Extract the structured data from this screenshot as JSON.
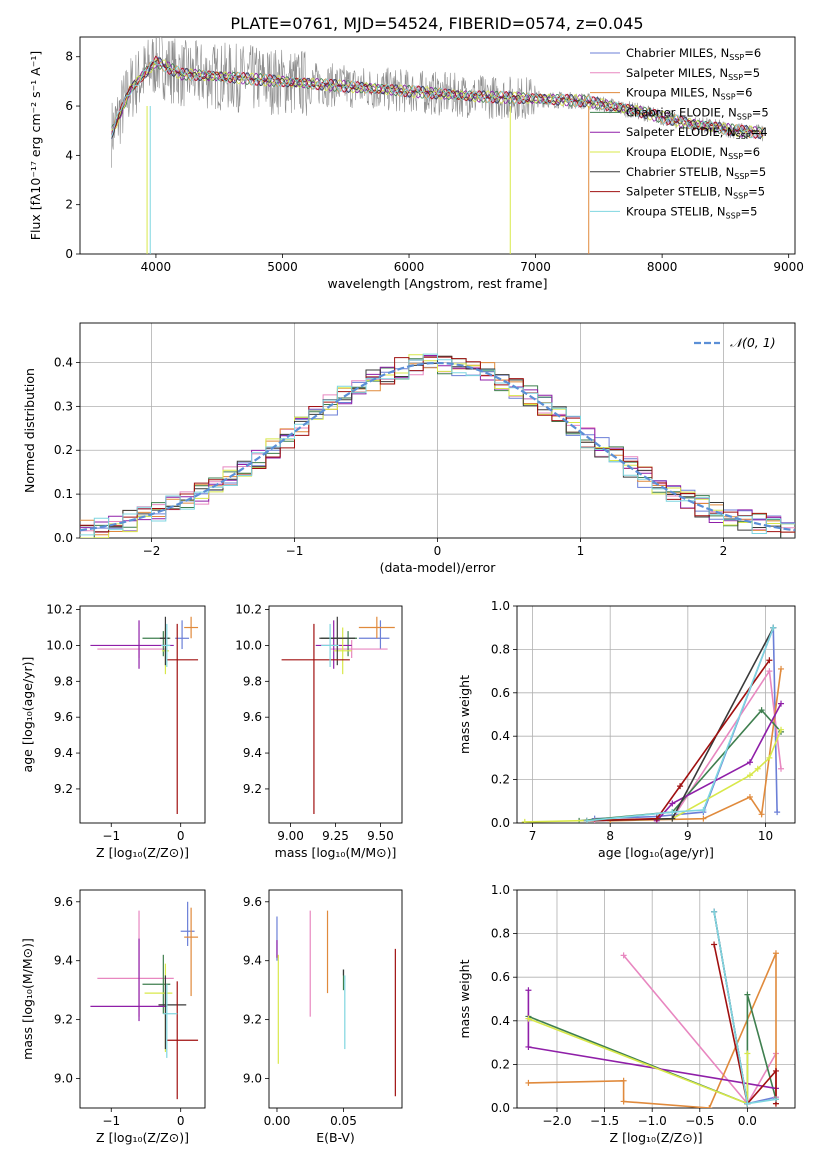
{
  "figure_title": "PLATE=0761, MJD=54524, FIBERID=0574, z=0.045",
  "colors": {
    "Chabrier MILES": "#6b7fd7",
    "Salpeter MILES": "#e887c0",
    "Kroupa MILES": "#e08a3c",
    "Chabrier ELODIE": "#3f7f4f",
    "Salpeter ELODIE": "#8f1fa8",
    "Kroupa ELODIE": "#d8e84a",
    "Chabrier STELIB": "#3a3a3a",
    "Salpeter STELIB": "#a01010",
    "Kroupa STELIB": "#7fd6e0",
    "observed": "#8c8c8c",
    "normal_curve": "#5b8fd6"
  },
  "chart_data": [
    {
      "id": "spectrum",
      "type": "line",
      "xlabel": "wavelength [Angstrom, rest frame]",
      "ylabel": "Flux [fλ10⁻¹⁷ erg cm⁻² s⁻¹ A⁻¹]",
      "xlim": [
        3400,
        9050
      ],
      "ylim": [
        0,
        8.8
      ],
      "xticks": [
        4000,
        5000,
        6000,
        7000,
        8000,
        9000
      ],
      "yticks": [
        0,
        2,
        4,
        6,
        8
      ],
      "x": [
        3650,
        3800,
        4000,
        4200,
        4500,
        5000,
        5500,
        6000,
        6500,
        7000,
        7400,
        7800,
        8200,
        8600,
        8800
      ],
      "model_y": [
        4.9,
        6.7,
        7.8,
        7.3,
        7.2,
        7.0,
        6.8,
        6.6,
        6.4,
        6.3,
        6.2,
        5.8,
        5.3,
        5.0,
        4.9
      ],
      "legend": [
        {
          "label": "Chabrier MILES, N",
          "sub": "SSP",
          "value": "=6"
        },
        {
          "label": "Salpeter MILES, N",
          "sub": "SSP",
          "value": "=5"
        },
        {
          "label": "Kroupa MILES, N",
          "sub": "SSP",
          "value": "=6"
        },
        {
          "label": "Chabrier ELODIE, N",
          "sub": "SSP",
          "value": "=5"
        },
        {
          "label": "Salpeter ELODIE, N",
          "sub": "SSP",
          "value": "=4"
        },
        {
          "label": "Kroupa ELODIE, N",
          "sub": "SSP",
          "value": "=6"
        },
        {
          "label": "Chabrier STELIB, N",
          "sub": "SSP",
          "value": "=5"
        },
        {
          "label": "Salpeter STELIB, N",
          "sub": "SSP",
          "value": "=5"
        },
        {
          "label": "Kroupa STELIB, N",
          "sub": "SSP",
          "value": "=5"
        }
      ]
    },
    {
      "id": "residuals",
      "type": "histogram",
      "xlabel": "(data-model)/error",
      "ylabel": "Normed distribution",
      "xlim": [
        -2.5,
        2.5
      ],
      "ylim": [
        0,
        0.49
      ],
      "xticks": [
        -2,
        -1,
        0,
        1,
        2
      ],
      "yticks": [
        0.0,
        0.1,
        0.2,
        0.3,
        0.4
      ],
      "grid": true,
      "legend": "𝒩(0, 1)",
      "legend_position": "top-right"
    },
    {
      "id": "z-age",
      "type": "scatter",
      "xlabel": "Z [log₁₀(Z/Z⊙)]",
      "ylabel": "age  [log₁₀(age/yr)]",
      "xlim": [
        -1.45,
        0.35
      ],
      "ylim": [
        9.01,
        10.22
      ],
      "xticks": [
        -1,
        0
      ],
      "yticks": [
        9.2,
        9.4,
        9.6,
        9.8,
        10.0,
        10.2
      ],
      "points": [
        {
          "s": "Chabrier MILES",
          "x": 0.02,
          "y": 10.04,
          "xe": [
            0.1,
            0.1
          ],
          "ye": [
            0.06,
            0.1
          ]
        },
        {
          "s": "Salpeter MILES",
          "x": -0.6,
          "y": 9.98,
          "xe": [
            0.6,
            0.4
          ],
          "ye": [
            0.05,
            0.05
          ]
        },
        {
          "s": "Kroupa MILES",
          "x": 0.15,
          "y": 10.1,
          "xe": [
            0.1,
            0.1
          ],
          "ye": [
            0.06,
            0.06
          ]
        },
        {
          "s": "Chabrier ELODIE",
          "x": -0.25,
          "y": 10.04,
          "xe": [
            0.3,
            0.1
          ],
          "ye": [
            0.1,
            0.04
          ]
        },
        {
          "s": "Salpeter ELODIE",
          "x": -0.6,
          "y": 10.0,
          "xe": [
            0.7,
            0.5
          ],
          "ye": [
            0.13,
            0.14
          ]
        },
        {
          "s": "Kroupa ELODIE",
          "x": -0.22,
          "y": 9.97,
          "xe": [
            0.05,
            0.05
          ],
          "ye": [
            0.13,
            0.13
          ]
        },
        {
          "s": "Chabrier STELIB",
          "x": -0.22,
          "y": 10.04,
          "xe": [
            0.08,
            0.05
          ],
          "ye": [
            0.15,
            0.12
          ]
        },
        {
          "s": "Salpeter STELIB",
          "x": -0.05,
          "y": 9.92,
          "xe": [
            0.15,
            0.3
          ],
          "ye": [
            0.86,
            0.2
          ]
        },
        {
          "s": "Kroupa STELIB",
          "x": -0.2,
          "y": 10.0,
          "xe": [
            0.08,
            0.05
          ],
          "ye": [
            0.12,
            0.12
          ]
        }
      ]
    },
    {
      "id": "mass-age",
      "type": "scatter",
      "xlabel": "mass [log₁₀(M/M⊙)]",
      "ylabel": "",
      "xlim": [
        8.88,
        9.62
      ],
      "ylim": [
        9.01,
        10.22
      ],
      "xticks": [
        9.0,
        9.25,
        9.5
      ],
      "xtick_labels": [
        "9.00",
        "9.25",
        "9.50"
      ],
      "yticks": [
        9.2,
        9.4,
        9.6,
        9.8,
        10.0,
        10.2
      ],
      "points": [
        {
          "s": "Chabrier MILES",
          "x": 9.5,
          "y": 10.04,
          "xe": [
            0.12,
            0.05
          ],
          "ye": [
            0.06,
            0.1
          ]
        },
        {
          "s": "Salpeter MILES",
          "x": 9.34,
          "y": 9.98,
          "xe": [
            0.12,
            0.2
          ],
          "ye": [
            0.05,
            0.05
          ]
        },
        {
          "s": "Kroupa MILES",
          "x": 9.48,
          "y": 10.1,
          "xe": [
            0.1,
            0.1
          ],
          "ye": [
            0.06,
            0.06
          ]
        },
        {
          "s": "Chabrier ELODIE",
          "x": 9.32,
          "y": 10.04,
          "xe": [
            0.15,
            0.05
          ],
          "ye": [
            0.1,
            0.04
          ]
        },
        {
          "s": "Salpeter ELODIE",
          "x": 9.24,
          "y": 10.0,
          "xe": [
            0.1,
            0.1
          ],
          "ye": [
            0.13,
            0.14
          ]
        },
        {
          "s": "Kroupa ELODIE",
          "x": 9.29,
          "y": 9.97,
          "xe": [
            0.05,
            0.05
          ],
          "ye": [
            0.13,
            0.13
          ]
        },
        {
          "s": "Chabrier STELIB",
          "x": 9.26,
          "y": 10.04,
          "xe": [
            0.1,
            0.1
          ],
          "ye": [
            0.15,
            0.12
          ]
        },
        {
          "s": "Salpeter STELIB",
          "x": 9.13,
          "y": 9.92,
          "xe": [
            0.18,
            0.2
          ],
          "ye": [
            0.86,
            0.2
          ]
        },
        {
          "s": "Kroupa STELIB",
          "x": 9.22,
          "y": 10.0,
          "xe": [
            0.05,
            0.05
          ],
          "ye": [
            0.12,
            0.12
          ]
        }
      ]
    },
    {
      "id": "age-weight",
      "type": "line",
      "xlabel": "age  [log₁₀(age/yr)]",
      "ylabel": "mass weight",
      "xlim": [
        6.8,
        10.38
      ],
      "ylim": [
        0,
        1.0
      ],
      "xticks": [
        7,
        8,
        9,
        10
      ],
      "yticks": [
        0.0,
        0.2,
        0.4,
        0.6,
        0.8,
        1.0
      ],
      "grid": true,
      "series": [
        {
          "s": "Chabrier MILES",
          "x": [
            7.8,
            8.6,
            9.2,
            10.1,
            10.15
          ],
          "y": [
            0.02,
            0.03,
            0.05,
            0.9,
            0.05
          ]
        },
        {
          "s": "Salpeter MILES",
          "x": [
            7.8,
            8.8,
            10.05,
            10.2
          ],
          "y": [
            0.01,
            0.02,
            0.7,
            0.25
          ]
        },
        {
          "s": "Kroupa MILES",
          "x": [
            8.0,
            9.2,
            9.8,
            9.95,
            10.2
          ],
          "y": [
            0.01,
            0.02,
            0.12,
            0.04,
            0.71
          ]
        },
        {
          "s": "Chabrier ELODIE",
          "x": [
            7.6,
            8.8,
            9.95,
            10.2
          ],
          "y": [
            0.01,
            0.05,
            0.52,
            0.42
          ]
        },
        {
          "s": "Salpeter ELODIE",
          "x": [
            8.6,
            8.8,
            9.8,
            10.2
          ],
          "y": [
            0.01,
            0.09,
            0.28,
            0.55
          ]
        },
        {
          "s": "Kroupa ELODIE",
          "x": [
            6.9,
            8.8,
            9.8,
            9.9,
            10.05,
            10.2
          ],
          "y": [
            0.005,
            0.02,
            0.22,
            0.25,
            0.3,
            0.43
          ]
        },
        {
          "s": "Chabrier STELIB",
          "x": [
            7.7,
            8.8,
            10.1
          ],
          "y": [
            0.01,
            0.02,
            0.9
          ]
        },
        {
          "s": "Salpeter STELIB",
          "x": [
            7.7,
            8.6,
            8.9,
            10.05
          ],
          "y": [
            0.01,
            0.02,
            0.17,
            0.75
          ]
        },
        {
          "s": "Kroupa STELIB",
          "x": [
            7.7,
            8.8,
            9.2,
            10.1
          ],
          "y": [
            0.01,
            0.05,
            0.06,
            0.9
          ]
        }
      ]
    },
    {
      "id": "z-mass",
      "type": "scatter",
      "xlabel": "Z [log₁₀(Z/Z⊙)]",
      "ylabel": "mass [log₁₀(M/M⊙)]",
      "xlim": [
        -1.45,
        0.35
      ],
      "ylim": [
        8.9,
        9.64
      ],
      "xticks": [
        -1,
        0
      ],
      "yticks": [
        9.0,
        9.2,
        9.4,
        9.6
      ],
      "points": [
        {
          "s": "Chabrier MILES",
          "x": 0.1,
          "y": 9.5,
          "xe": [
            0.1,
            0.1
          ],
          "ye": [
            0.05,
            0.1
          ]
        },
        {
          "s": "Salpeter MILES",
          "x": -0.6,
          "y": 9.34,
          "xe": [
            0.6,
            0.5
          ],
          "ye": [
            0.13,
            0.23
          ]
        },
        {
          "s": "Kroupa MILES",
          "x": 0.15,
          "y": 9.48,
          "xe": [
            0.1,
            0.1
          ],
          "ye": [
            0.2,
            0.1
          ]
        },
        {
          "s": "Chabrier ELODIE",
          "x": -0.25,
          "y": 9.32,
          "xe": [
            0.3,
            0.1
          ],
          "ye": [
            0.1,
            0.1
          ]
        },
        {
          "s": "Salpeter ELODIE",
          "x": -0.6,
          "y": 9.245,
          "xe": [
            0.7,
            0.4
          ],
          "ye": [
            0.05,
            0.23
          ]
        },
        {
          "s": "Kroupa ELODIE",
          "x": -0.22,
          "y": 9.29,
          "xe": [
            0.3,
            0.1
          ],
          "ye": [
            0.2,
            0.1
          ]
        },
        {
          "s": "Chabrier STELIB",
          "x": -0.22,
          "y": 9.25,
          "xe": [
            0.1,
            0.3
          ],
          "ye": [
            0.15,
            0.1
          ]
        },
        {
          "s": "Salpeter STELIB",
          "x": -0.05,
          "y": 9.13,
          "xe": [
            0.15,
            0.3
          ],
          "ye": [
            0.2,
            0.2
          ]
        },
        {
          "s": "Kroupa STELIB",
          "x": -0.2,
          "y": 9.22,
          "xe": [
            0.05,
            0.15
          ],
          "ye": [
            0.15,
            0.1
          ]
        }
      ]
    },
    {
      "id": "ebv-mass",
      "type": "scatter",
      "xlabel": "E(B-V)",
      "ylabel": "",
      "xlim": [
        -0.006,
        0.094
      ],
      "ylim": [
        8.9,
        9.64
      ],
      "xticks": [
        0.0,
        0.05
      ],
      "xtick_labels": [
        "0.00",
        "0.05"
      ],
      "yticks": [
        9.0,
        9.2,
        9.4,
        9.6
      ],
      "points": [
        {
          "s": "Chabrier MILES",
          "x": 0.0,
          "y": 9.45,
          "xe": [
            0,
            0
          ],
          "ye": [
            0.05,
            0.1
          ]
        },
        {
          "s": "Salpeter MILES",
          "x": 0.025,
          "y": 9.39,
          "xe": [
            0,
            0
          ],
          "ye": [
            0.18,
            0.18
          ]
        },
        {
          "s": "Kroupa MILES",
          "x": 0.038,
          "y": 9.44,
          "xe": [
            0,
            0
          ],
          "ye": [
            0.15,
            0.13
          ]
        },
        {
          "s": "Chabrier ELODIE",
          "x": 0.05,
          "y": 9.35,
          "xe": [
            0,
            0
          ],
          "ye": [
            0.05,
            0.02
          ]
        },
        {
          "s": "Salpeter ELODIE",
          "x": 0.0,
          "y": 9.44,
          "xe": [
            0,
            0
          ],
          "ye": [
            0.03,
            0.03
          ]
        },
        {
          "s": "Kroupa ELODIE",
          "x": 0.001,
          "y": 9.25,
          "xe": [
            0,
            0
          ],
          "ye": [
            0.2,
            0.17
          ]
        },
        {
          "s": "Chabrier STELIB",
          "x": 0.05,
          "y": 9.36,
          "xe": [
            0,
            0
          ],
          "ye": [
            0.01,
            0.01
          ]
        },
        {
          "s": "Salpeter STELIB",
          "x": 0.089,
          "y": 9.15,
          "xe": [
            0,
            0
          ],
          "ye": [
            0.21,
            0.29
          ]
        },
        {
          "s": "Kroupa STELIB",
          "x": 0.051,
          "y": 9.2,
          "xe": [
            0,
            0
          ],
          "ye": [
            0.1,
            0.15
          ]
        }
      ]
    },
    {
      "id": "z-weight",
      "type": "line",
      "xlabel": "Z [log₁₀(Z/Z⊙)]",
      "ylabel": "mass weight",
      "xlim": [
        -2.42,
        0.5
      ],
      "ylim": [
        0,
        1.0
      ],
      "xticks": [
        -2.0,
        -1.5,
        -1.0,
        -0.5,
        0.0
      ],
      "xtick_labels": [
        "−2.0",
        "−1.5",
        "−1.0",
        "−0.5",
        "0.0"
      ],
      "yticks": [
        0.0,
        0.2,
        0.4,
        0.6,
        0.8,
        1.0
      ],
      "grid": true,
      "series": [
        {
          "s": "Chabrier MILES",
          "x": [
            -0.35,
            0.0,
            0.3
          ],
          "y": [
            0.9,
            0.02,
            0.05
          ]
        },
        {
          "s": "Salpeter MILES",
          "x": [
            -1.3,
            0.0,
            0.3,
            0.3
          ],
          "y": [
            0.7,
            0.02,
            0.25,
            0.05
          ]
        },
        {
          "s": "Kroupa MILES",
          "x": [
            -2.3,
            -1.3,
            -1.3,
            -0.4,
            0.3,
            0.3
          ],
          "y": [
            0.115,
            0.125,
            0.03,
            0.0,
            0.71,
            0.02
          ]
        },
        {
          "s": "Chabrier ELODIE",
          "x": [
            -2.3,
            0.0,
            0.0,
            0.3
          ],
          "y": [
            0.42,
            0.02,
            0.52,
            0.04
          ]
        },
        {
          "s": "Salpeter ELODIE",
          "x": [
            -2.3,
            -2.3,
            0.3
          ],
          "y": [
            0.54,
            0.28,
            0.09
          ]
        },
        {
          "s": "Kroupa ELODIE",
          "x": [
            -2.3,
            0.0,
            0.0
          ],
          "y": [
            0.41,
            0.02,
            0.25
          ]
        },
        {
          "s": "Chabrier STELIB",
          "x": [
            -0.35,
            0.0
          ],
          "y": [
            0.9,
            0.02
          ]
        },
        {
          "s": "Salpeter STELIB",
          "x": [
            -0.35,
            0.0,
            0.3,
            0.3
          ],
          "y": [
            0.75,
            0.02,
            0.17,
            0.02
          ]
        },
        {
          "s": "Kroupa STELIB",
          "x": [
            -0.35,
            0.0,
            0.3
          ],
          "y": [
            0.9,
            0.02,
            0.04
          ]
        }
      ]
    }
  ]
}
